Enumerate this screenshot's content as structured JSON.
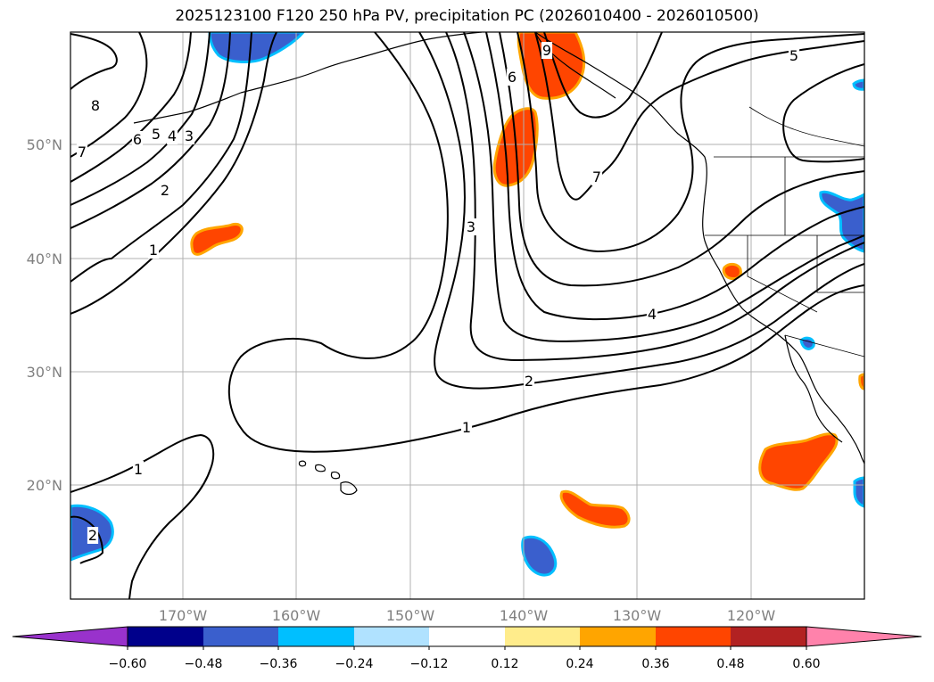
{
  "title": "2025123100 F120 250 hPa PV, precipitation PC (2026010400 - 2026010500)",
  "map": {
    "lat_labels": [
      "50°N",
      "40°N",
      "30°N",
      "20°N"
    ],
    "lon_labels": [
      "170°W",
      "160°W",
      "150°W",
      "140°W",
      "130°W",
      "120°W"
    ],
    "grid": true,
    "contour_labels": [
      "8",
      "7",
      "6",
      "5",
      "4",
      "3",
      "2",
      "1",
      "9",
      "6",
      "3",
      "4",
      "2",
      "1",
      "7",
      "5",
      "1",
      "2"
    ]
  },
  "colorbar": {
    "ticks": [
      "−0.60",
      "−0.48",
      "−0.36",
      "−0.24",
      "−0.12",
      "0.12",
      "0.24",
      "0.36",
      "0.48",
      "0.60"
    ],
    "colors": [
      "#9932cc",
      "#00008b",
      "#3a5fcd",
      "#00bfff",
      "#b0e2ff",
      "#ffffff",
      "#ffec8b",
      "#ffa500",
      "#ff4500",
      "#b22222",
      "#ff82ab"
    ]
  },
  "colors": {
    "negative_shading": "#3a5fcd",
    "negative_edge": "#00bfff",
    "positive_shading": "#ff4500",
    "positive_edge": "#ffa500"
  }
}
